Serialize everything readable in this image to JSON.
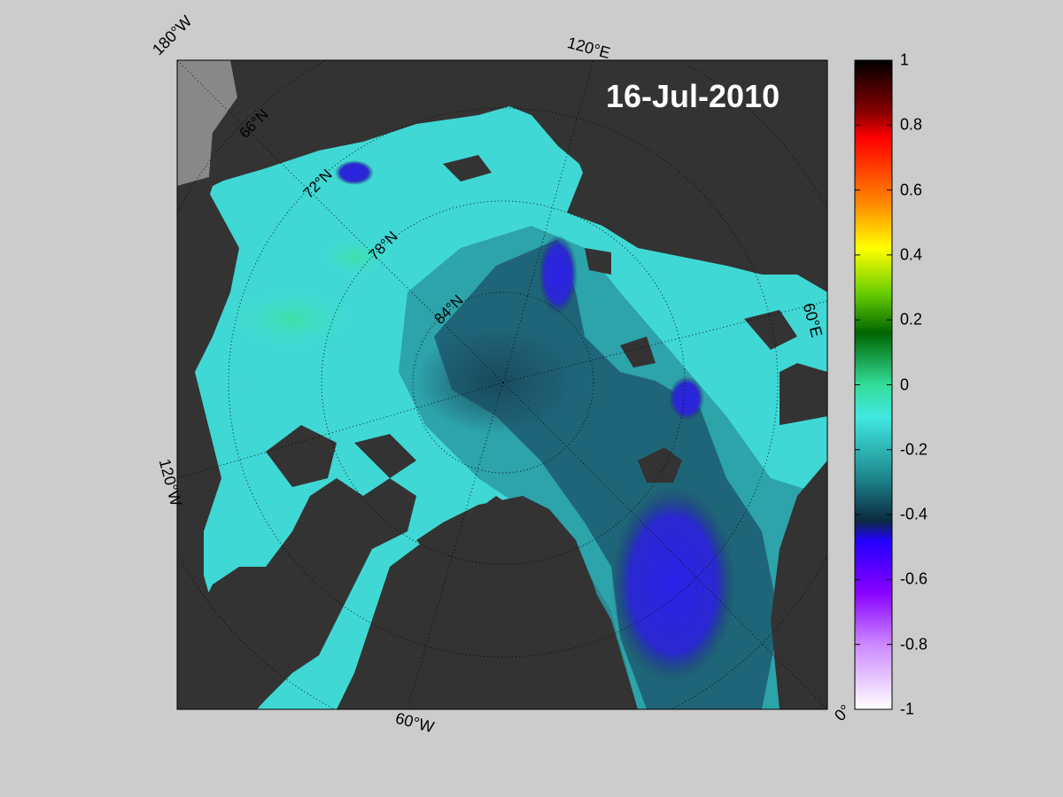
{
  "map": {
    "date": "16-Jul-2010",
    "longitude_labels": [
      "180°W",
      "120°E",
      "60°E",
      "0°",
      "60°W",
      "120°W"
    ],
    "latitude_labels": [
      "66°N",
      "72°N",
      "78°N",
      "84°N"
    ],
    "colors": {
      "land": "#333333",
      "no_data": "#888888",
      "background": "#cccccc"
    }
  },
  "colorbar": {
    "ticks": [
      "1",
      "0.8",
      "0.6",
      "0.4",
      "0.2",
      "0",
      "-0.2",
      "-0.4",
      "-0.6",
      "-0.8",
      "-1"
    ],
    "range": [
      -1,
      1
    ],
    "colors": [
      "#ffffff",
      "#cc99ff",
      "#9933ff",
      "#3300ff",
      "#003366",
      "#008080",
      "#40e0e0",
      "#33cc99",
      "#006600",
      "#66cc00",
      "#ffff00",
      "#ff9900",
      "#ff0000",
      "#990000",
      "#000000"
    ]
  }
}
